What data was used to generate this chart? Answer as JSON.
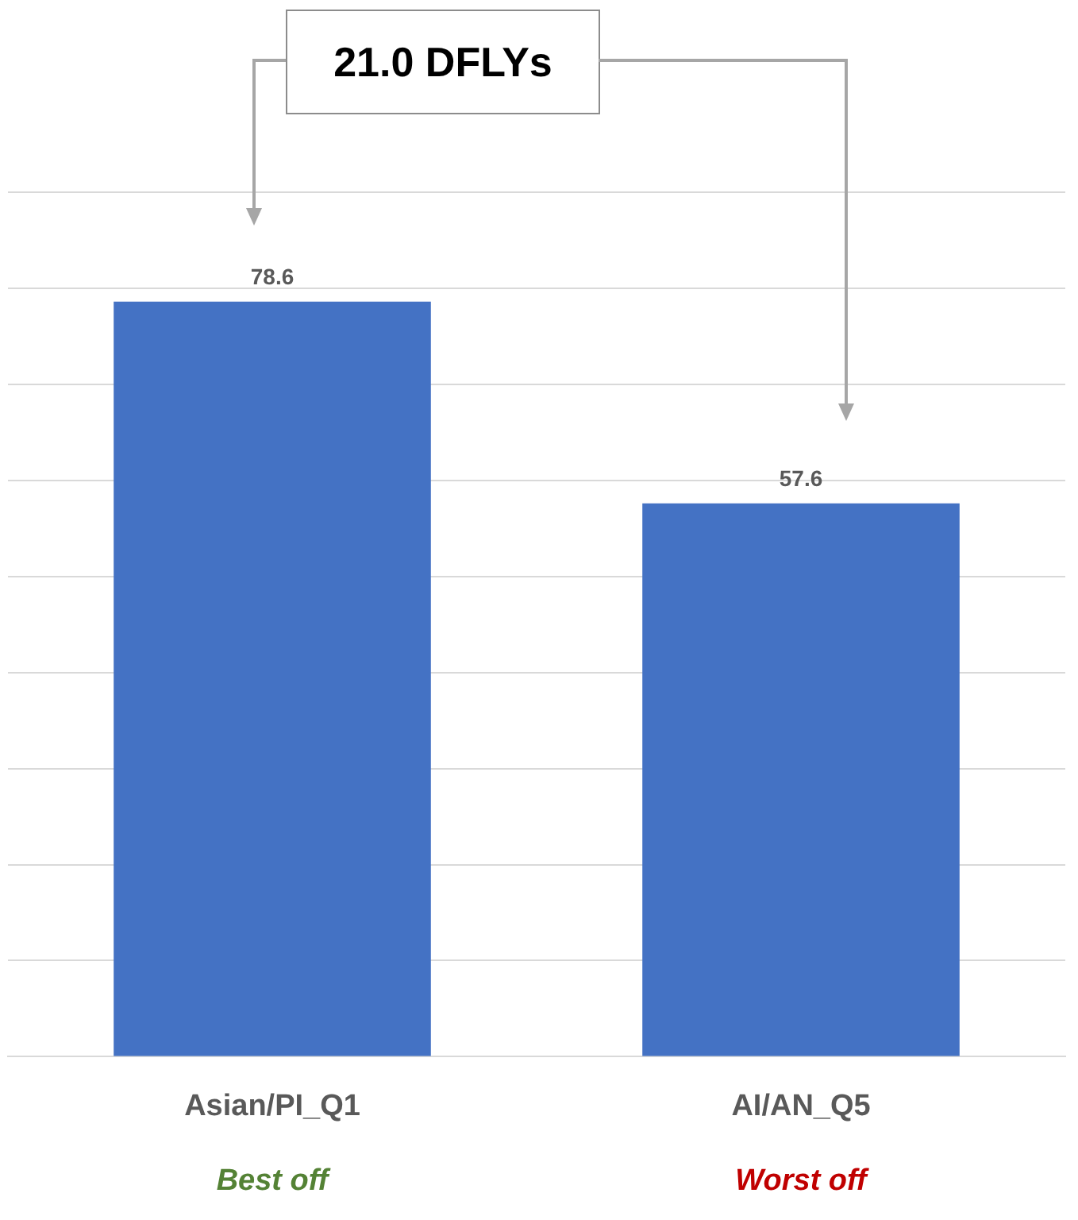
{
  "chart_data": {
    "type": "bar",
    "categories": [
      "Asian/PI_Q1",
      "AI/AN_Q5"
    ],
    "values": [
      78.6,
      57.6
    ],
    "color": "#4472c4",
    "data_labels": true,
    "grid": "y",
    "legend": false,
    "tick_labels": "x",
    "ylim": [
      0,
      90
    ],
    "yticks": [
      {
        "value": 0,
        "label": null
      },
      {
        "value": 10,
        "label": null
      },
      {
        "value": 20,
        "label": null
      },
      {
        "value": 30,
        "label": null
      },
      {
        "value": 40,
        "label": null
      },
      {
        "value": 50,
        "label": null
      },
      {
        "value": 60,
        "label": null
      },
      {
        "value": 70,
        "label": null
      },
      {
        "value": 80,
        "label": null
      },
      {
        "value": 90,
        "label": null
      }
    ],
    "annotations": [
      "21.0 DFLYs",
      "Best off",
      "Worst off"
    ]
  }
}
